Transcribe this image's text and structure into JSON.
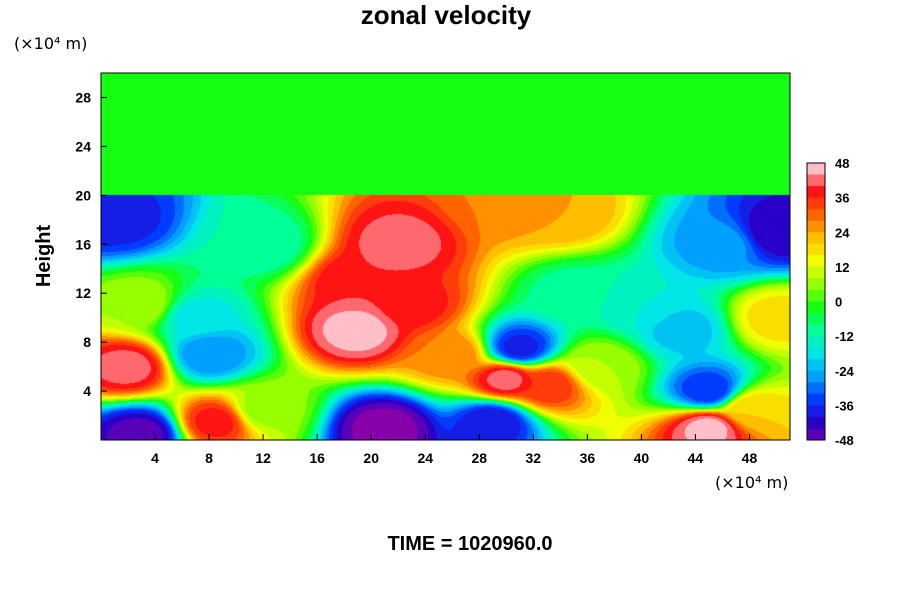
{
  "chart_data": {
    "type": "heatmap",
    "title": "zonal velocity",
    "ylabel": "Height",
    "y_unit_label": "(×10⁴ m)",
    "x_unit_label": "(×10⁴ m)",
    "time_label": "TIME = 1020960.0",
    "xlim": [
      0,
      51
    ],
    "ylim": [
      0,
      30
    ],
    "x_ticks": [
      4,
      8,
      12,
      16,
      20,
      24,
      28,
      32,
      36,
      40,
      44,
      48
    ],
    "x_tick_labels": [
      "4",
      "8",
      "12",
      "16",
      "20",
      "24",
      "28",
      "32",
      "36",
      "40",
      "44",
      "48"
    ],
    "y_ticks": [
      4,
      8,
      12,
      16,
      20,
      24,
      28
    ],
    "y_tick_labels": [
      "4",
      "8",
      "12",
      "16",
      "20",
      "24",
      "28"
    ],
    "colorbar": {
      "min": -48,
      "max": 48,
      "ticks": [
        48,
        36,
        24,
        12,
        0,
        -12,
        -24,
        -36,
        -48
      ],
      "tick_labels": [
        "48",
        "36",
        "24",
        "12",
        "0",
        "-12",
        "-24",
        "-36",
        "-48"
      ]
    },
    "upper_layer_value": 0,
    "upper_layer_from_height": 20,
    "features": [
      {
        "x": 19,
        "y": 9,
        "value": 48
      },
      {
        "x": 19,
        "y": 13,
        "value": 42
      },
      {
        "x": 23,
        "y": 11,
        "value": 40
      },
      {
        "x": 22,
        "y": 16,
        "value": 44
      },
      {
        "x": 26,
        "y": 7,
        "value": 30
      },
      {
        "x": 30,
        "y": 5,
        "value": 44
      },
      {
        "x": 33,
        "y": 4.5,
        "value": 38
      },
      {
        "x": 2,
        "y": 6,
        "value": 44
      },
      {
        "x": 8.5,
        "y": 1.5,
        "value": 40
      },
      {
        "x": 45,
        "y": 1,
        "value": 48
      },
      {
        "x": 48,
        "y": 2.5,
        "value": 22
      },
      {
        "x": 34,
        "y": 18.5,
        "value": 26
      },
      {
        "x": 30,
        "y": 19.5,
        "value": 30
      },
      {
        "x": 21,
        "y": 1,
        "value": -48
      },
      {
        "x": 29,
        "y": 1.5,
        "value": -38
      },
      {
        "x": 3,
        "y": 0.5,
        "value": -44
      },
      {
        "x": 1,
        "y": 18,
        "value": -36
      },
      {
        "x": 50,
        "y": 17,
        "value": -42
      },
      {
        "x": 46,
        "y": 16,
        "value": -24
      },
      {
        "x": 31,
        "y": 7.5,
        "value": -36
      },
      {
        "x": 45,
        "y": 4,
        "value": -34
      },
      {
        "x": 43,
        "y": 9,
        "value": -20
      },
      {
        "x": 40,
        "y": 11,
        "value": -14
      },
      {
        "x": 8,
        "y": 7,
        "value": -26
      },
      {
        "x": 12,
        "y": 16,
        "value": -10
      },
      {
        "x": 7,
        "y": 10,
        "value": -16
      },
      {
        "x": 35,
        "y": 12,
        "value": -8
      },
      {
        "x": 12,
        "y": 2.5,
        "value": 8
      },
      {
        "x": 3,
        "y": 11,
        "value": 10
      },
      {
        "x": 37,
        "y": 6,
        "value": 10
      },
      {
        "x": 50,
        "y": 10,
        "value": 20
      }
    ]
  }
}
